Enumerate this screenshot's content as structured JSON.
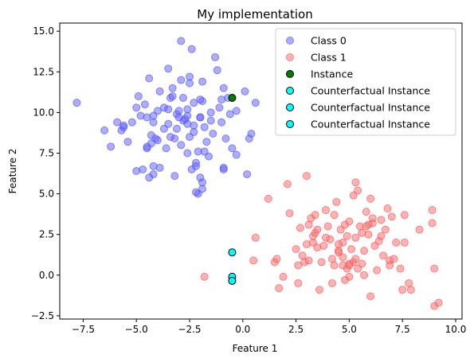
{
  "chart_data": {
    "type": "scatter",
    "title": "My implementation",
    "xlabel": "Feature 1",
    "ylabel": "Feature 2",
    "xlim": [
      -8.6,
      10.3
    ],
    "ylim": [
      -2.7,
      15.5
    ],
    "xticks": [
      -7.5,
      -5.0,
      -2.5,
      0.0,
      2.5,
      5.0,
      7.5,
      10.0
    ],
    "xtick_labels": [
      "−7.5",
      "−5.0",
      "−2.5",
      "0.0",
      "2.5",
      "5.0",
      "7.5",
      "10.0"
    ],
    "yticks": [
      -2.5,
      0.0,
      2.5,
      5.0,
      7.5,
      10.0,
      12.5,
      15.0
    ],
    "ytick_labels": [
      "−2.5",
      "0.0",
      "2.5",
      "5.0",
      "7.5",
      "10.0",
      "12.5",
      "15.0"
    ],
    "grid": false,
    "legend_position": "top-right",
    "series": [
      {
        "name": "Class 0",
        "color": "#6b6bff",
        "alpha": 0.55,
        "points": [
          [
            -7.8,
            10.6
          ],
          [
            -6.5,
            8.9
          ],
          [
            -6.2,
            7.9
          ],
          [
            -5.9,
            9.4
          ],
          [
            -5.7,
            8.9
          ],
          [
            -5.6,
            9.1
          ],
          [
            -5.4,
            8.2
          ],
          [
            -5.2,
            9.4
          ],
          [
            -5.0,
            10.3
          ],
          [
            -4.9,
            11.0
          ],
          [
            -4.8,
            9.8
          ],
          [
            -4.6,
            10.5
          ],
          [
            -4.5,
            9.7
          ],
          [
            -4.4,
            12.1
          ],
          [
            -4.2,
            9.4
          ],
          [
            -4.5,
            7.8
          ],
          [
            -4.3,
            8.1
          ],
          [
            -4.3,
            8.6
          ],
          [
            -4.1,
            8.4
          ],
          [
            -4.0,
            8.3
          ],
          [
            -4.2,
            6.7
          ],
          [
            -4.2,
            6.2
          ],
          [
            -4.4,
            6.0
          ],
          [
            -4.7,
            6.5
          ],
          [
            -5.0,
            6.4
          ],
          [
            -3.9,
            6.6
          ],
          [
            -3.7,
            9.0
          ],
          [
            -3.5,
            9.3
          ],
          [
            -3.4,
            10.9
          ],
          [
            -3.3,
            11.5
          ],
          [
            -3.5,
            12.7
          ],
          [
            -3.6,
            7.8
          ],
          [
            -3.2,
            8.4
          ],
          [
            -3.1,
            9.9
          ],
          [
            -3.0,
            10.1
          ],
          [
            -2.9,
            14.4
          ],
          [
            -2.9,
            8.0
          ],
          [
            -2.8,
            9.5
          ],
          [
            -2.7,
            9.6
          ],
          [
            -2.6,
            7.5
          ],
          [
            -2.5,
            12.2
          ],
          [
            -2.5,
            11.8
          ],
          [
            -2.5,
            8.5
          ],
          [
            -2.4,
            13.9
          ],
          [
            -2.3,
            9.2
          ],
          [
            -2.3,
            10.6
          ],
          [
            -2.2,
            6.9
          ],
          [
            -2.1,
            7.6
          ],
          [
            -2.0,
            9.7
          ],
          [
            -1.9,
            11.9
          ],
          [
            -1.9,
            10.7
          ],
          [
            -1.8,
            9.1
          ],
          [
            -1.7,
            8.2
          ],
          [
            -1.6,
            7.3
          ],
          [
            -1.5,
            9.5
          ],
          [
            -1.4,
            8.7
          ],
          [
            -1.3,
            13.4
          ],
          [
            -1.2,
            12.6
          ],
          [
            -1.1,
            10.3
          ],
          [
            -1.0,
            9.4
          ],
          [
            -0.9,
            11.5
          ],
          [
            -0.8,
            8.4
          ],
          [
            -0.7,
            10.9
          ],
          [
            -0.6,
            9.9
          ],
          [
            -0.5,
            7.8
          ],
          [
            -0.3,
            7.4
          ],
          [
            -0.3,
            10.1
          ],
          [
            0.1,
            11.3
          ],
          [
            0.2,
            6.2
          ],
          [
            0.3,
            8.4
          ],
          [
            0.4,
            8.7
          ],
          [
            0.6,
            10.6
          ],
          [
            -2.1,
            5.0
          ],
          [
            -1.9,
            5.3
          ],
          [
            -2.2,
            5.1
          ],
          [
            -2.4,
            6.5
          ],
          [
            -1.9,
            5.7
          ],
          [
            -3.2,
            6.1
          ],
          [
            -2.0,
            6.0
          ],
          [
            -0.9,
            6.6
          ],
          [
            -1.8,
            7.6
          ],
          [
            -2.6,
            9.8
          ],
          [
            -3.4,
            8.5
          ],
          [
            -4.0,
            10.1
          ],
          [
            -3.1,
            9.0
          ],
          [
            -1.5,
            10.0
          ],
          [
            -2.0,
            10.8
          ],
          [
            -4.5,
            7.9
          ],
          [
            -3.9,
            11.3
          ],
          [
            -3.7,
            10.3
          ],
          [
            -2.6,
            9.3
          ],
          [
            -2.2,
            6.7
          ],
          [
            -2.9,
            12.0
          ],
          [
            -1.0,
            10.8
          ],
          [
            -4.2,
            9.8
          ],
          [
            -3.3,
            11.0
          ],
          [
            -5.6,
            9.2
          ],
          [
            -2.8,
            10.9
          ],
          [
            -0.9,
            6.5
          ],
          [
            -3.0,
            9.7
          ],
          [
            -2.0,
            9.7
          ],
          [
            -2.3,
            8.8
          ],
          [
            -2.6,
            10.2
          ],
          [
            -3.5,
            10.2
          ]
        ]
      },
      {
        "name": "Class 1",
        "color": "#ff7777",
        "alpha": 0.55,
        "points": [
          [
            -1.8,
            -0.1
          ],
          [
            0.5,
            0.9
          ],
          [
            0.6,
            2.3
          ],
          [
            1.2,
            4.7
          ],
          [
            1.5,
            0.8
          ],
          [
            1.6,
            1.0
          ],
          [
            1.7,
            -0.8
          ],
          [
            1.9,
            -0.1
          ],
          [
            2.1,
            5.6
          ],
          [
            2.2,
            3.8
          ],
          [
            2.5,
            1.6
          ],
          [
            2.6,
            -0.5
          ],
          [
            2.7,
            2.9
          ],
          [
            2.8,
            1.2
          ],
          [
            2.9,
            0.8
          ],
          [
            3.0,
            1.9
          ],
          [
            3.0,
            6.1
          ],
          [
            3.1,
            3.1
          ],
          [
            3.2,
            3.5
          ],
          [
            3.3,
            2.0
          ],
          [
            3.3,
            2.4
          ],
          [
            3.4,
            3.7
          ],
          [
            3.5,
            1.7
          ],
          [
            3.6,
            -0.9
          ],
          [
            3.7,
            0.8
          ],
          [
            3.8,
            1.8
          ],
          [
            3.9,
            4.0
          ],
          [
            4.0,
            3.0
          ],
          [
            4.1,
            2.2
          ],
          [
            4.2,
            1.0
          ],
          [
            4.2,
            -0.5
          ],
          [
            4.3,
            3.7
          ],
          [
            4.4,
            4.5
          ],
          [
            4.5,
            1.5
          ],
          [
            4.6,
            2.8
          ],
          [
            4.7,
            2.0
          ],
          [
            4.7,
            0.6
          ],
          [
            4.8,
            3.1
          ],
          [
            4.9,
            0.4
          ],
          [
            5.0,
            -0.1
          ],
          [
            5.1,
            1.6
          ],
          [
            5.2,
            0.8
          ],
          [
            5.3,
            2.3
          ],
          [
            5.4,
            5.2
          ],
          [
            5.5,
            3.0
          ],
          [
            5.6,
            0.7
          ],
          [
            5.7,
            1.5
          ],
          [
            5.8,
            3.9
          ],
          [
            5.9,
            2.5
          ],
          [
            6.0,
            -1.3
          ],
          [
            6.1,
            3.2
          ],
          [
            6.2,
            1.8
          ],
          [
            6.3,
            0.3
          ],
          [
            6.4,
            2.1
          ],
          [
            6.5,
            3.4
          ],
          [
            6.6,
            1.2
          ],
          [
            6.7,
            2.8
          ],
          [
            6.8,
            4.1
          ],
          [
            6.9,
            0.9
          ],
          [
            7.0,
            3.6
          ],
          [
            7.1,
            1.0
          ],
          [
            7.2,
            2.0
          ],
          [
            7.4,
            0.4
          ],
          [
            7.5,
            -0.9
          ],
          [
            7.6,
            3.7
          ],
          [
            7.8,
            -0.5
          ],
          [
            7.9,
            -0.9
          ],
          [
            8.3,
            2.8
          ],
          [
            8.9,
            4.0
          ],
          [
            8.9,
            3.2
          ],
          [
            9.0,
            0.4
          ],
          [
            9.0,
            -1.9
          ],
          [
            9.2,
            -1.7
          ],
          [
            5.3,
            5.7
          ],
          [
            5.2,
            4.9
          ],
          [
            4.5,
            1.4
          ],
          [
            3.4,
            2.6
          ],
          [
            5.0,
            3.3
          ],
          [
            4.9,
            2.4
          ],
          [
            5.7,
            0.0
          ],
          [
            4.3,
            0.6
          ],
          [
            5.9,
            3.1
          ],
          [
            6.5,
            2.4
          ],
          [
            4.5,
            1.9
          ],
          [
            5.0,
            0.7
          ],
          [
            5.6,
            2.6
          ],
          [
            3.9,
            2.3
          ],
          [
            5.3,
            1.0
          ],
          [
            2.6,
            0.6
          ],
          [
            4.7,
            1.1
          ],
          [
            6.1,
            3.5
          ],
          [
            5.8,
            3.0
          ],
          [
            4.8,
            -0.3
          ],
          [
            5.4,
            0.4
          ],
          [
            5.0,
            0.6
          ],
          [
            6.0,
            4.7
          ],
          [
            7.6,
            2.0
          ],
          [
            6.9,
            0.6
          ],
          [
            3.5,
            2.8
          ],
          [
            3.1,
            0.9
          ]
        ]
      }
    ],
    "instance": {
      "name": "Instance",
      "color": "#008000",
      "point": [
        -0.5,
        10.9
      ]
    },
    "counterfactuals": [
      {
        "name": "Counterfactual Instance",
        "color": "#00ffff",
        "point": [
          -0.5,
          1.4
        ]
      },
      {
        "name": "Counterfactual Instance",
        "color": "#00ffff",
        "point": [
          -0.5,
          -0.1
        ]
      },
      {
        "name": "Counterfactual Instance",
        "color": "#00ffff",
        "point": [
          -0.5,
          -0.35
        ]
      }
    ]
  }
}
